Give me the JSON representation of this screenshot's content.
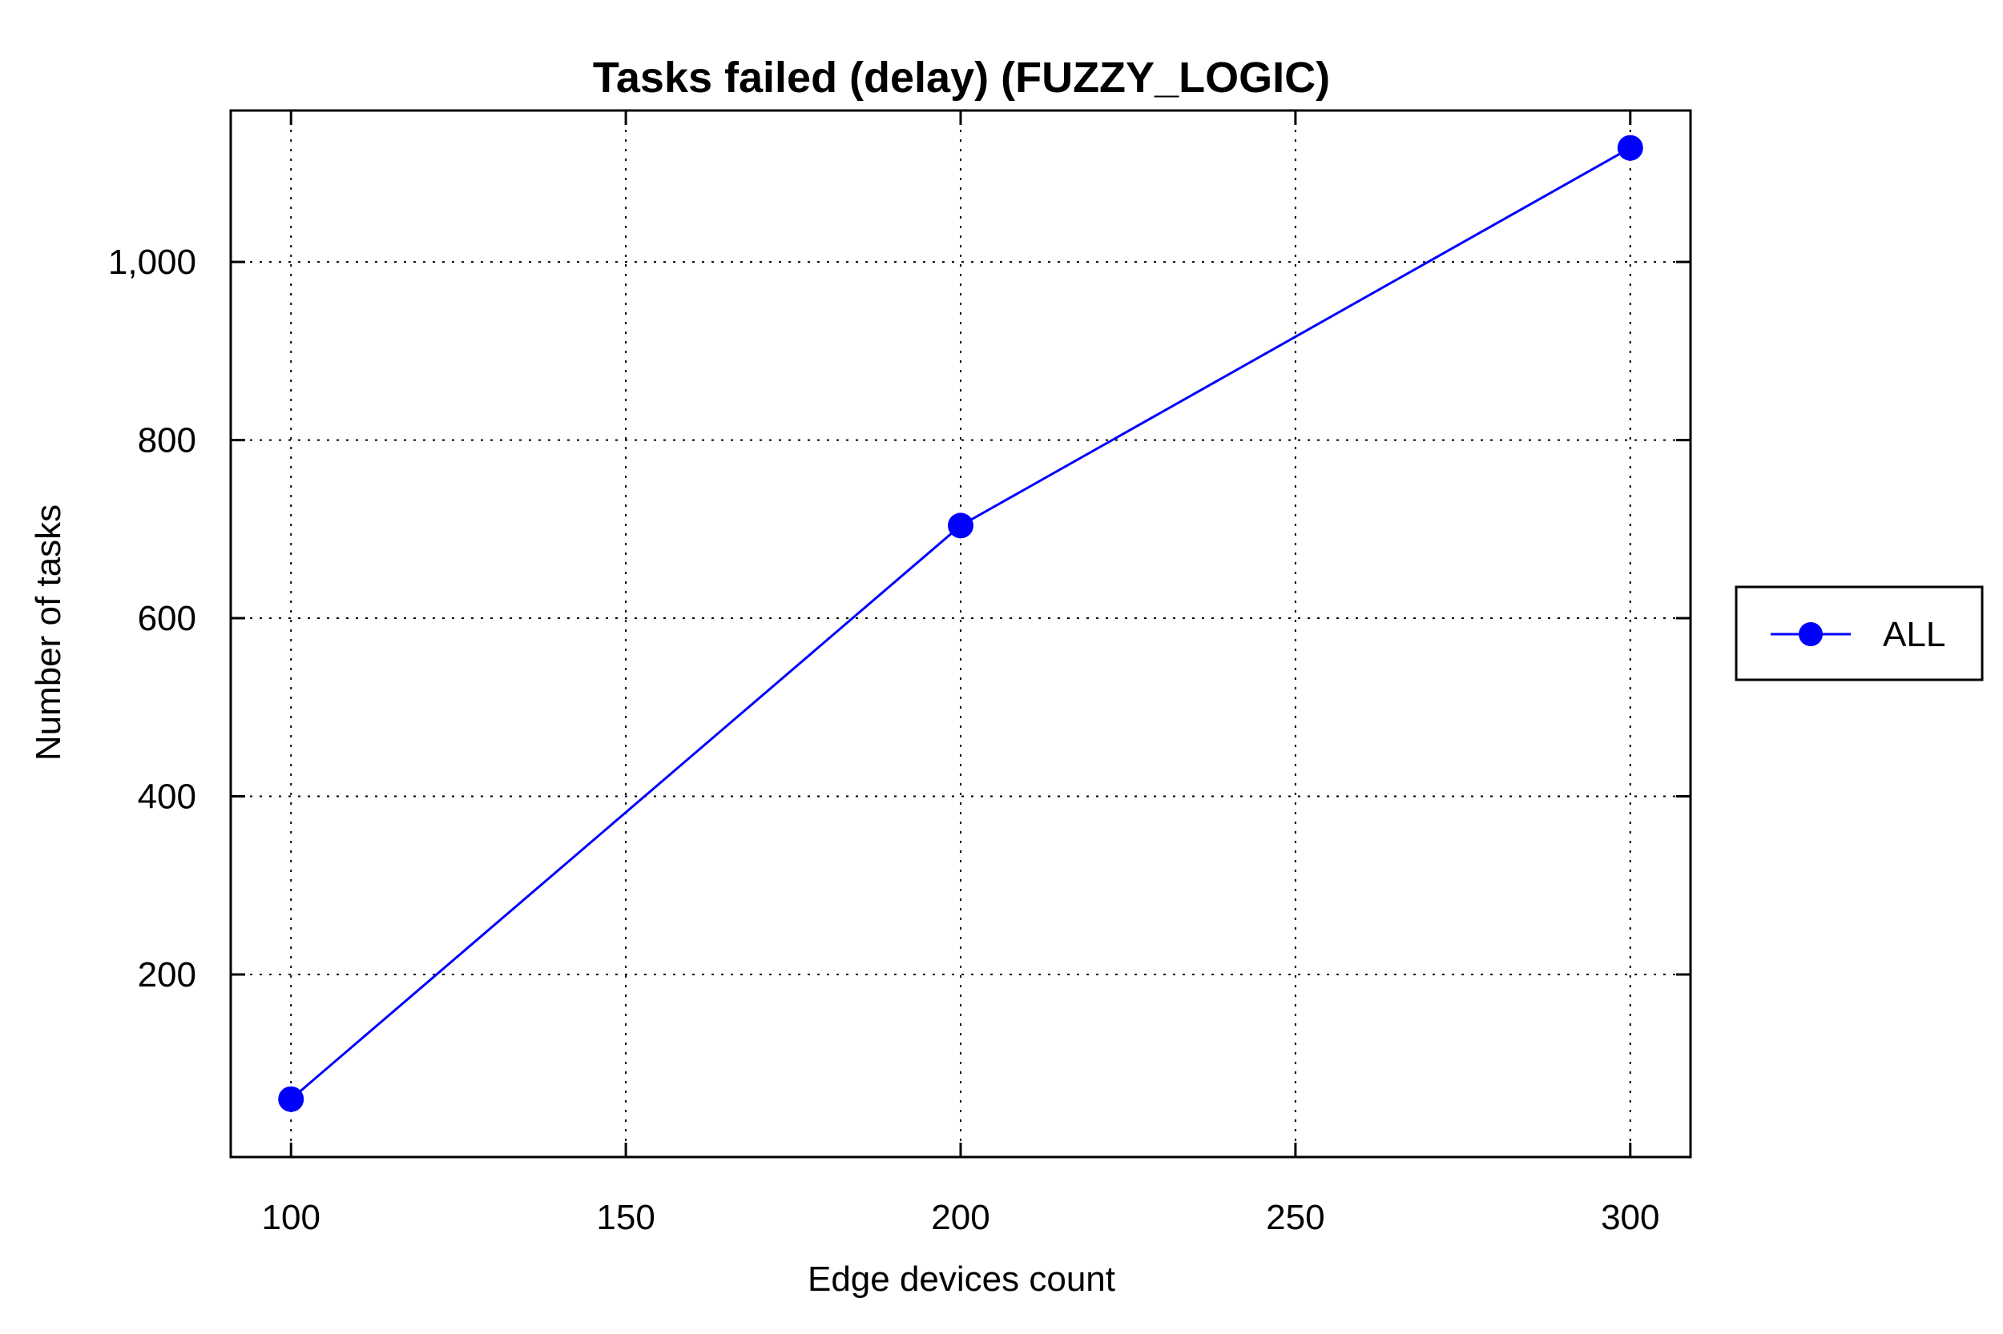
{
  "chart_data": {
    "type": "line",
    "title": "Tasks failed (delay) (FUZZY_LOGIC)",
    "xlabel": "Edge devices count",
    "ylabel": "Number of tasks",
    "xlim": [
      91,
      309
    ],
    "ylim": [
      -5,
      1170
    ],
    "x_ticks": [
      100,
      150,
      200,
      250,
      300
    ],
    "x_tick_labels": [
      "100",
      "150",
      "200",
      "250",
      "300"
    ],
    "y_ticks": [
      200,
      400,
      600,
      800,
      1000
    ],
    "y_tick_labels": [
      "200",
      "400",
      "600",
      "800",
      "1,000"
    ],
    "grid": true,
    "legend_position": "right",
    "series": [
      {
        "name": "ALL",
        "color": "#0000ff",
        "marker": "circle",
        "x": [
          100,
          200,
          300
        ],
        "y": [
          60,
          704,
          1128
        ]
      }
    ]
  }
}
